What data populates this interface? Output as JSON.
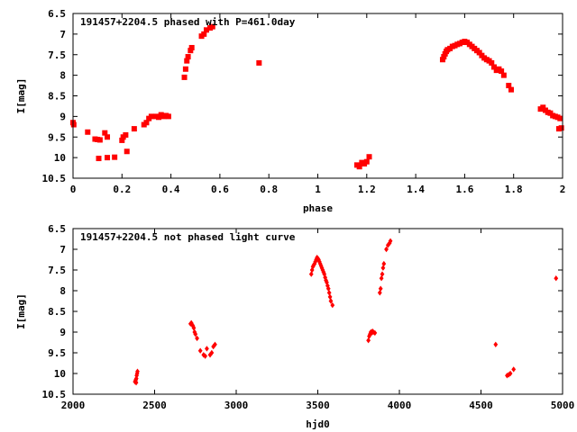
{
  "chart_data": [
    {
      "type": "scatter",
      "title": "191457+2204.5 phased with P=461.0day",
      "xlabel": "phase",
      "ylabel": "I[mag]",
      "xlim": [
        0,
        2
      ],
      "ylim": [
        10.5,
        6.5
      ],
      "y_inverted": true,
      "xticks": [
        "0",
        "0.2",
        "0.4",
        "0.6",
        "0.8",
        "1",
        "1.2",
        "1.4",
        "1.6",
        "1.8",
        "2"
      ],
      "yticks": [
        "6.5",
        "7",
        "7.5",
        "8",
        "8.5",
        "9",
        "9.5",
        "10",
        "10.5"
      ],
      "marker": "filled-square",
      "color": "#ff0000",
      "points": [
        [
          0.0,
          9.15
        ],
        [
          0.003,
          9.2
        ],
        [
          0.06,
          9.38
        ],
        [
          0.09,
          9.55
        ],
        [
          0.1,
          9.56
        ],
        [
          0.11,
          9.57
        ],
        [
          0.105,
          10.02
        ],
        [
          0.13,
          9.4
        ],
        [
          0.14,
          9.5
        ],
        [
          0.14,
          10.0
        ],
        [
          0.17,
          9.99
        ],
        [
          0.2,
          9.58
        ],
        [
          0.205,
          9.5
        ],
        [
          0.215,
          9.45
        ],
        [
          0.22,
          9.85
        ],
        [
          0.25,
          9.3
        ],
        [
          0.29,
          9.2
        ],
        [
          0.3,
          9.15
        ],
        [
          0.31,
          9.05
        ],
        [
          0.32,
          9.0
        ],
        [
          0.34,
          9.0
        ],
        [
          0.35,
          9.02
        ],
        [
          0.36,
          8.96
        ],
        [
          0.37,
          9.0
        ],
        [
          0.38,
          8.98
        ],
        [
          0.39,
          9.0
        ],
        [
          0.455,
          8.05
        ],
        [
          0.46,
          7.85
        ],
        [
          0.465,
          7.65
        ],
        [
          0.47,
          7.55
        ],
        [
          0.48,
          7.4
        ],
        [
          0.485,
          7.33
        ],
        [
          0.525,
          7.05
        ],
        [
          0.535,
          7.0
        ],
        [
          0.545,
          6.9
        ],
        [
          0.56,
          6.85
        ],
        [
          0.57,
          6.82
        ],
        [
          0.76,
          7.7
        ],
        [
          1.16,
          10.18
        ],
        [
          1.17,
          10.22
        ],
        [
          1.18,
          10.12
        ],
        [
          1.19,
          10.15
        ],
        [
          1.2,
          10.1
        ],
        [
          1.21,
          9.98
        ],
        [
          1.51,
          7.62
        ],
        [
          1.515,
          7.55
        ],
        [
          1.52,
          7.48
        ],
        [
          1.525,
          7.42
        ],
        [
          1.53,
          7.38
        ],
        [
          1.54,
          7.35
        ],
        [
          1.55,
          7.3
        ],
        [
          1.56,
          7.28
        ],
        [
          1.57,
          7.25
        ],
        [
          1.58,
          7.23
        ],
        [
          1.59,
          7.2
        ],
        [
          1.6,
          7.18
        ],
        [
          1.61,
          7.2
        ],
        [
          1.62,
          7.25
        ],
        [
          1.63,
          7.3
        ],
        [
          1.64,
          7.35
        ],
        [
          1.65,
          7.4
        ],
        [
          1.66,
          7.45
        ],
        [
          1.67,
          7.52
        ],
        [
          1.68,
          7.58
        ],
        [
          1.69,
          7.62
        ],
        [
          1.7,
          7.65
        ],
        [
          1.71,
          7.7
        ],
        [
          1.72,
          7.8
        ],
        [
          1.73,
          7.88
        ],
        [
          1.74,
          7.85
        ],
        [
          1.75,
          7.9
        ],
        [
          1.76,
          8.0
        ],
        [
          1.78,
          8.25
        ],
        [
          1.79,
          8.35
        ],
        [
          1.91,
          8.82
        ],
        [
          1.92,
          8.78
        ],
        [
          1.93,
          8.85
        ],
        [
          1.94,
          8.9
        ],
        [
          1.95,
          8.92
        ],
        [
          1.96,
          8.98
        ],
        [
          1.97,
          9.0
        ],
        [
          1.98,
          9.02
        ],
        [
          1.99,
          9.05
        ],
        [
          1.985,
          9.3
        ],
        [
          1.995,
          9.28
        ]
      ]
    },
    {
      "type": "scatter",
      "title": "191457+2204.5 not phased light curve",
      "xlabel": "hjd0",
      "ylabel": "I[mag]",
      "xlim": [
        2000,
        5000
      ],
      "ylim": [
        10.5,
        6.5
      ],
      "y_inverted": true,
      "xticks": [
        "2000",
        "2500",
        "3000",
        "3500",
        "4000",
        "4500",
        "5000"
      ],
      "yticks": [
        "6.5",
        "7",
        "7.5",
        "8",
        "8.5",
        "9",
        "9.5",
        "10",
        "10.5"
      ],
      "marker": "small-diamond",
      "color": "#ff0000",
      "points": [
        [
          2380,
          10.2
        ],
        [
          2382,
          10.18
        ],
        [
          2385,
          10.15
        ],
        [
          2388,
          10.12
        ],
        [
          2390,
          10.05
        ],
        [
          2393,
          10.0
        ],
        [
          2395,
          9.95
        ],
        [
          2387,
          10.22
        ],
        [
          2720,
          8.8
        ],
        [
          2725,
          8.78
        ],
        [
          2730,
          8.82
        ],
        [
          2735,
          8.85
        ],
        [
          2740,
          8.9
        ],
        [
          2745,
          9.0
        ],
        [
          2750,
          9.05
        ],
        [
          2760,
          9.15
        ],
        [
          2780,
          9.45
        ],
        [
          2800,
          9.55
        ],
        [
          2810,
          9.58
        ],
        [
          2820,
          9.4
        ],
        [
          2840,
          9.55
        ],
        [
          2850,
          9.5
        ],
        [
          2860,
          9.35
        ],
        [
          2870,
          9.3
        ],
        [
          3460,
          7.6
        ],
        [
          3465,
          7.5
        ],
        [
          3470,
          7.42
        ],
        [
          3475,
          7.38
        ],
        [
          3480,
          7.35
        ],
        [
          3485,
          7.3
        ],
        [
          3490,
          7.25
        ],
        [
          3495,
          7.2
        ],
        [
          3500,
          7.22
        ],
        [
          3505,
          7.25
        ],
        [
          3510,
          7.3
        ],
        [
          3515,
          7.35
        ],
        [
          3520,
          7.4
        ],
        [
          3525,
          7.45
        ],
        [
          3530,
          7.5
        ],
        [
          3535,
          7.55
        ],
        [
          3540,
          7.6
        ],
        [
          3545,
          7.68
        ],
        [
          3550,
          7.75
        ],
        [
          3555,
          7.8
        ],
        [
          3560,
          7.88
        ],
        [
          3565,
          7.95
        ],
        [
          3570,
          8.05
        ],
        [
          3575,
          8.15
        ],
        [
          3580,
          8.25
        ],
        [
          3590,
          8.35
        ],
        [
          3810,
          9.2
        ],
        [
          3815,
          9.1
        ],
        [
          3820,
          9.05
        ],
        [
          3825,
          9.0
        ],
        [
          3830,
          9.02
        ],
        [
          3835,
          8.98
        ],
        [
          3840,
          9.0
        ],
        [
          3850,
          9.02
        ],
        [
          3880,
          8.05
        ],
        [
          3885,
          7.95
        ],
        [
          3890,
          7.7
        ],
        [
          3895,
          7.6
        ],
        [
          3900,
          7.45
        ],
        [
          3905,
          7.35
        ],
        [
          3920,
          7.0
        ],
        [
          3930,
          6.9
        ],
        [
          3940,
          6.85
        ],
        [
          3945,
          6.8
        ],
        [
          4590,
          9.3
        ],
        [
          4660,
          10.05
        ],
        [
          4670,
          10.03
        ],
        [
          4680,
          10.0
        ],
        [
          4700,
          9.9
        ],
        [
          4960,
          7.7
        ]
      ]
    }
  ]
}
